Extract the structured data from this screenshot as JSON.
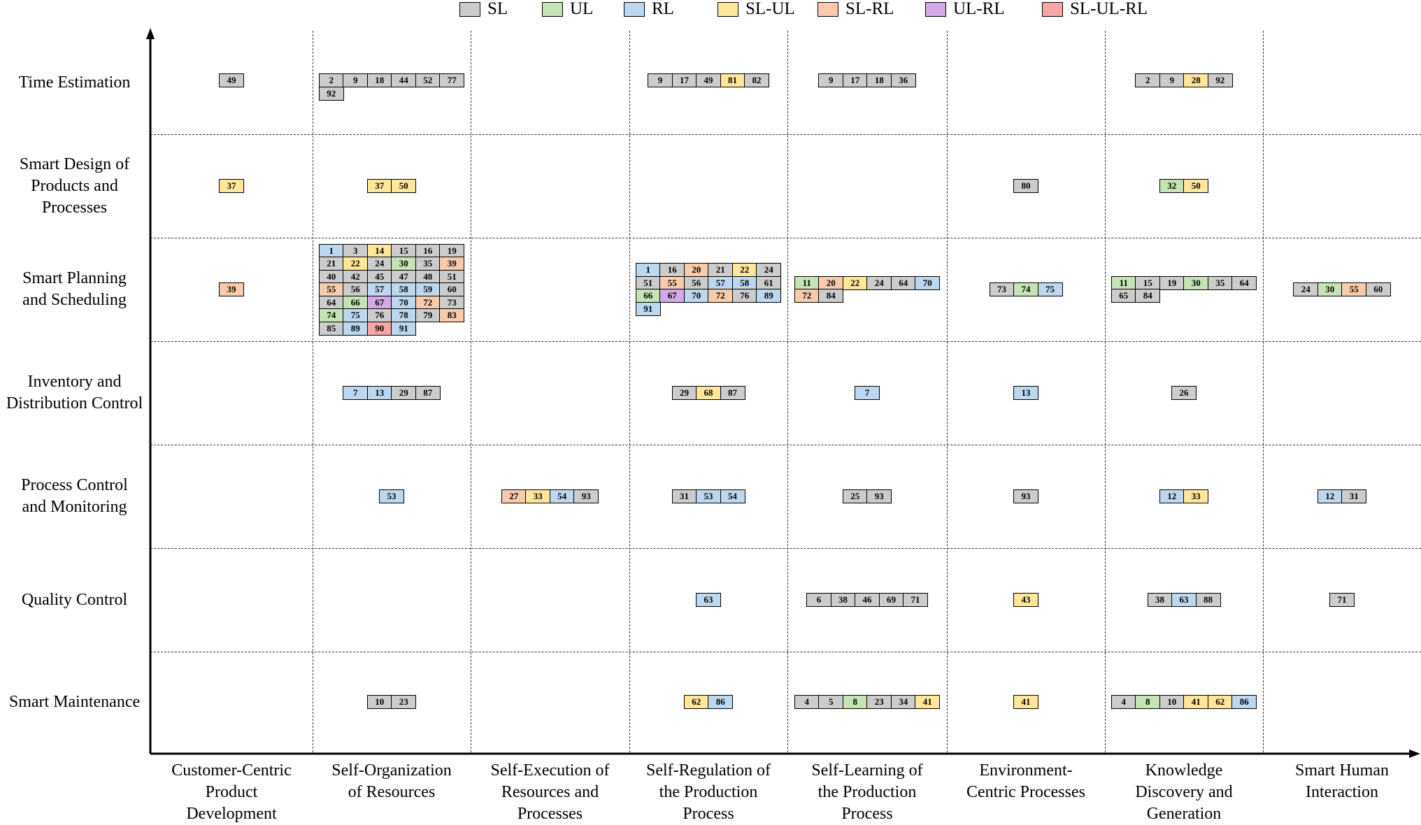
{
  "legend": [
    {
      "key": "SL",
      "label": "SL",
      "color": "#cccccc"
    },
    {
      "key": "UL",
      "label": "UL",
      "color": "#c6e3b5"
    },
    {
      "key": "RL",
      "label": "RL",
      "color": "#bdd7ee"
    },
    {
      "key": "SL-UL",
      "label": "SL-UL",
      "color": "#ffe699"
    },
    {
      "key": "SL-RL",
      "label": "SL-RL",
      "color": "#f8cbad"
    },
    {
      "key": "UL-RL",
      "label": "UL-RL",
      "color": "#d4a9e6"
    },
    {
      "key": "SL-UL-RL",
      "label": "SL-UL-RL",
      "color": "#f7a7a7"
    }
  ],
  "rows": [
    "Time Estimation",
    "Smart Design of\nProducts and\nProcesses",
    "Smart Planning\nand Scheduling",
    "Inventory and\nDistribution Control",
    "Process Control\nand Monitoring",
    "Quality Control",
    "Smart Maintenance"
  ],
  "columns": [
    "Customer-Centric\nProduct\nDevelopment",
    "Self-Organization\nof Resources",
    "Self-Execution of\nResources and\nProcesses",
    "Self-Regulation of\nthe Production\nProcess",
    "Self-Learning of\nthe Production\nProcess",
    "Environment-\nCentric Processes",
    "Knowledge\nDiscovery and\nGeneration",
    "Smart Human\nInteraction"
  ],
  "cells": [
    {
      "row": 0,
      "col": 0,
      "tags": [
        [
          "49",
          "SL"
        ]
      ]
    },
    {
      "row": 0,
      "col": 1,
      "tags": [
        [
          "2",
          "SL"
        ],
        [
          "9",
          "SL"
        ],
        [
          "18",
          "SL"
        ],
        [
          "44",
          "SL"
        ],
        [
          "52",
          "SL"
        ],
        [
          "77",
          "SL"
        ],
        [
          "92",
          "SL"
        ]
      ]
    },
    {
      "row": 0,
      "col": 3,
      "tags": [
        [
          "9",
          "SL"
        ],
        [
          "17",
          "SL"
        ],
        [
          "49",
          "SL"
        ],
        [
          "81",
          "SL-UL"
        ],
        [
          "82",
          "SL"
        ]
      ]
    },
    {
      "row": 0,
      "col": 4,
      "tags": [
        [
          "9",
          "SL"
        ],
        [
          "17",
          "SL"
        ],
        [
          "18",
          "SL"
        ],
        [
          "36",
          "SL"
        ]
      ]
    },
    {
      "row": 0,
      "col": 6,
      "tags": [
        [
          "2",
          "SL"
        ],
        [
          "9",
          "SL"
        ],
        [
          "28",
          "SL-UL"
        ],
        [
          "92",
          "SL"
        ]
      ]
    },
    {
      "row": 1,
      "col": 0,
      "tags": [
        [
          "37",
          "SL-UL"
        ]
      ]
    },
    {
      "row": 1,
      "col": 1,
      "tags": [
        [
          "37",
          "SL-UL"
        ],
        [
          "50",
          "SL-UL"
        ]
      ]
    },
    {
      "row": 1,
      "col": 5,
      "tags": [
        [
          "80",
          "SL"
        ]
      ]
    },
    {
      "row": 1,
      "col": 6,
      "tags": [
        [
          "32",
          "UL"
        ],
        [
          "50",
          "SL-UL"
        ]
      ]
    },
    {
      "row": 2,
      "col": 0,
      "tags": [
        [
          "39",
          "SL-RL"
        ]
      ]
    },
    {
      "row": 2,
      "col": 1,
      "tags": [
        [
          "1",
          "RL"
        ],
        [
          "3",
          "SL"
        ],
        [
          "14",
          "SL-UL"
        ],
        [
          "15",
          "SL"
        ],
        [
          "16",
          "SL"
        ],
        [
          "19",
          "SL"
        ],
        [
          "21",
          "SL"
        ],
        [
          "22",
          "SL-UL"
        ],
        [
          "24",
          "SL"
        ],
        [
          "30",
          "UL"
        ],
        [
          "35",
          "SL"
        ],
        [
          "39",
          "SL-RL"
        ],
        [
          "40",
          "SL"
        ],
        [
          "42",
          "SL"
        ],
        [
          "45",
          "SL"
        ],
        [
          "47",
          "SL"
        ],
        [
          "48",
          "SL"
        ],
        [
          "51",
          "SL"
        ],
        [
          "55",
          "SL-RL"
        ],
        [
          "56",
          "SL"
        ],
        [
          "57",
          "RL"
        ],
        [
          "58",
          "RL"
        ],
        [
          "59",
          "RL"
        ],
        [
          "60",
          "SL"
        ],
        [
          "64",
          "SL"
        ],
        [
          "66",
          "UL"
        ],
        [
          "67",
          "UL-RL"
        ],
        [
          "70",
          "RL"
        ],
        [
          "72",
          "SL-RL"
        ],
        [
          "73",
          "SL"
        ],
        [
          "74",
          "UL"
        ],
        [
          "75",
          "RL"
        ],
        [
          "76",
          "SL"
        ],
        [
          "78",
          "RL"
        ],
        [
          "79",
          "SL"
        ],
        [
          "83",
          "SL-RL"
        ],
        [
          "85",
          "SL"
        ],
        [
          "89",
          "RL"
        ],
        [
          "90",
          "SL-UL-RL"
        ],
        [
          "91",
          "RL"
        ]
      ]
    },
    {
      "row": 2,
      "col": 3,
      "tags": [
        [
          "1",
          "RL"
        ],
        [
          "16",
          "SL"
        ],
        [
          "20",
          "SL-RL"
        ],
        [
          "21",
          "SL"
        ],
        [
          "22",
          "SL-UL"
        ],
        [
          "24",
          "SL"
        ],
        [
          "51",
          "SL"
        ],
        [
          "55",
          "SL-RL"
        ],
        [
          "56",
          "SL"
        ],
        [
          "57",
          "RL"
        ],
        [
          "58",
          "RL"
        ],
        [
          "61",
          "SL"
        ],
        [
          "66",
          "UL"
        ],
        [
          "67",
          "UL-RL"
        ],
        [
          "70",
          "RL"
        ],
        [
          "72",
          "SL-RL"
        ],
        [
          "76",
          "SL"
        ],
        [
          "89",
          "RL"
        ],
        [
          "91",
          "RL"
        ]
      ]
    },
    {
      "row": 2,
      "col": 4,
      "tags": [
        [
          "11",
          "UL"
        ],
        [
          "20",
          "SL-RL"
        ],
        [
          "22",
          "SL-UL"
        ],
        [
          "24",
          "SL"
        ],
        [
          "64",
          "SL"
        ],
        [
          "70",
          "RL"
        ],
        [
          "72",
          "SL-RL"
        ],
        [
          "84",
          "SL"
        ]
      ]
    },
    {
      "row": 2,
      "col": 5,
      "tags": [
        [
          "73",
          "SL"
        ],
        [
          "74",
          "UL"
        ],
        [
          "75",
          "RL"
        ]
      ]
    },
    {
      "row": 2,
      "col": 6,
      "tags": [
        [
          "11",
          "UL"
        ],
        [
          "15",
          "SL"
        ],
        [
          "19",
          "SL"
        ],
        [
          "30",
          "UL"
        ],
        [
          "35",
          "SL"
        ],
        [
          "64",
          "SL"
        ],
        [
          "65",
          "SL"
        ],
        [
          "84",
          "SL"
        ]
      ]
    },
    {
      "row": 2,
      "col": 7,
      "tags": [
        [
          "24",
          "SL"
        ],
        [
          "30",
          "UL"
        ],
        [
          "55",
          "SL-RL"
        ],
        [
          "60",
          "SL"
        ]
      ]
    },
    {
      "row": 3,
      "col": 1,
      "tags": [
        [
          "7",
          "RL"
        ],
        [
          "13",
          "RL"
        ],
        [
          "29",
          "SL"
        ],
        [
          "87",
          "SL"
        ]
      ]
    },
    {
      "row": 3,
      "col": 3,
      "tags": [
        [
          "29",
          "SL"
        ],
        [
          "68",
          "SL-UL"
        ],
        [
          "87",
          "SL"
        ]
      ]
    },
    {
      "row": 3,
      "col": 4,
      "tags": [
        [
          "7",
          "RL"
        ]
      ]
    },
    {
      "row": 3,
      "col": 5,
      "tags": [
        [
          "13",
          "RL"
        ]
      ]
    },
    {
      "row": 3,
      "col": 6,
      "tags": [
        [
          "26",
          "SL"
        ]
      ]
    },
    {
      "row": 4,
      "col": 1,
      "tags": [
        [
          "53",
          "RL"
        ]
      ]
    },
    {
      "row": 4,
      "col": 2,
      "tags": [
        [
          "27",
          "SL-RL"
        ],
        [
          "33",
          "SL-UL"
        ],
        [
          "54",
          "RL"
        ],
        [
          "93",
          "SL"
        ]
      ]
    },
    {
      "row": 4,
      "col": 3,
      "tags": [
        [
          "31",
          "SL"
        ],
        [
          "53",
          "RL"
        ],
        [
          "54",
          "RL"
        ]
      ]
    },
    {
      "row": 4,
      "col": 4,
      "tags": [
        [
          "25",
          "SL"
        ],
        [
          "93",
          "SL"
        ]
      ]
    },
    {
      "row": 4,
      "col": 5,
      "tags": [
        [
          "93",
          "SL"
        ]
      ]
    },
    {
      "row": 4,
      "col": 6,
      "tags": [
        [
          "12",
          "RL"
        ],
        [
          "33",
          "SL-UL"
        ]
      ]
    },
    {
      "row": 4,
      "col": 7,
      "tags": [
        [
          "12",
          "RL"
        ],
        [
          "31",
          "SL"
        ]
      ]
    },
    {
      "row": 5,
      "col": 3,
      "tags": [
        [
          "63",
          "RL"
        ]
      ]
    },
    {
      "row": 5,
      "col": 4,
      "tags": [
        [
          "6",
          "SL"
        ],
        [
          "38",
          "SL"
        ],
        [
          "46",
          "SL"
        ],
        [
          "69",
          "SL"
        ],
        [
          "71",
          "SL"
        ]
      ]
    },
    {
      "row": 5,
      "col": 5,
      "tags": [
        [
          "43",
          "SL-UL"
        ]
      ]
    },
    {
      "row": 5,
      "col": 6,
      "tags": [
        [
          "38",
          "SL"
        ],
        [
          "63",
          "RL"
        ],
        [
          "88",
          "SL"
        ]
      ]
    },
    {
      "row": 5,
      "col": 7,
      "tags": [
        [
          "71",
          "SL"
        ]
      ]
    },
    {
      "row": 6,
      "col": 1,
      "tags": [
        [
          "10",
          "SL"
        ],
        [
          "23",
          "SL"
        ]
      ]
    },
    {
      "row": 6,
      "col": 3,
      "tags": [
        [
          "62",
          "SL-UL"
        ],
        [
          "86",
          "RL"
        ]
      ]
    },
    {
      "row": 6,
      "col": 4,
      "tags": [
        [
          "4",
          "SL"
        ],
        [
          "5",
          "SL"
        ],
        [
          "8",
          "UL"
        ],
        [
          "23",
          "SL"
        ],
        [
          "34",
          "SL"
        ],
        [
          "41",
          "SL-UL"
        ]
      ]
    },
    {
      "row": 6,
      "col": 5,
      "tags": [
        [
          "41",
          "SL-UL"
        ]
      ]
    },
    {
      "row": 6,
      "col": 6,
      "tags": [
        [
          "4",
          "SL"
        ],
        [
          "8",
          "UL"
        ],
        [
          "10",
          "SL"
        ],
        [
          "41",
          "SL-UL"
        ],
        [
          "62",
          "SL-UL"
        ],
        [
          "86",
          "RL"
        ]
      ]
    }
  ]
}
